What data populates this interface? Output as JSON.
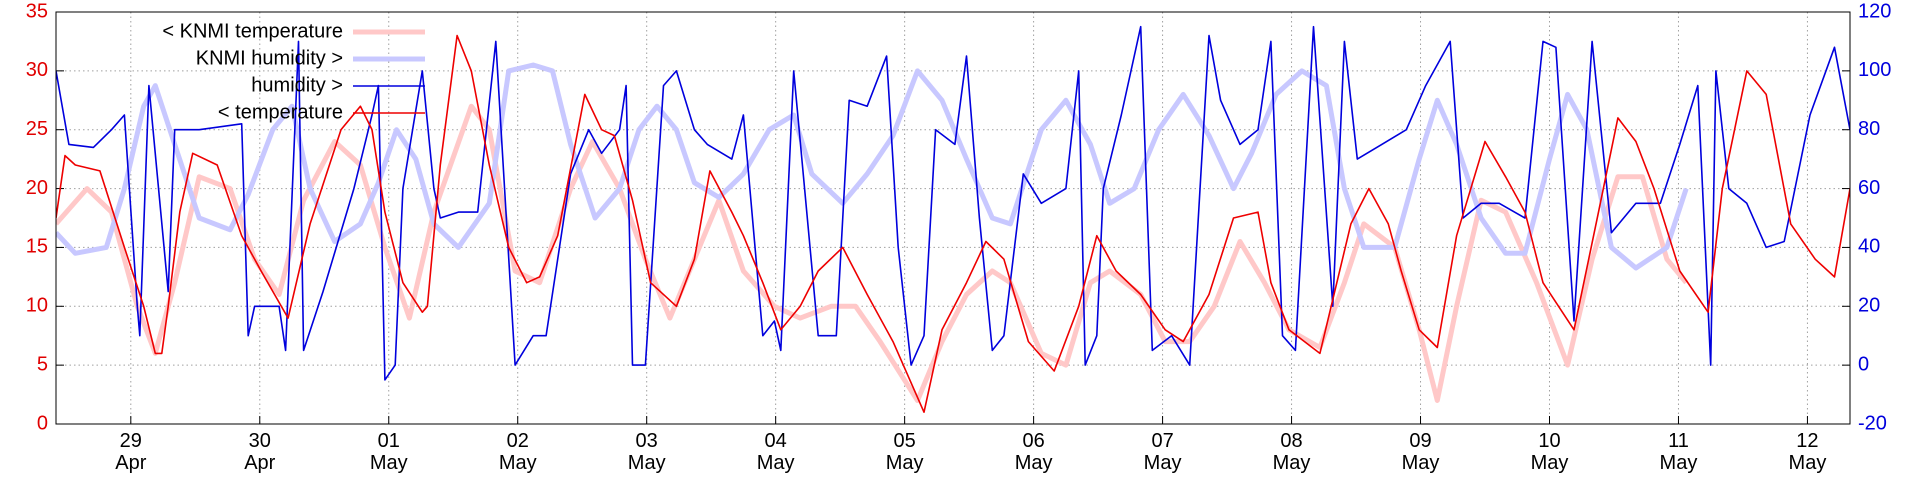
{
  "chart_data": {
    "type": "line",
    "legend": "upper left",
    "grid": true,
    "xlim": [
      0.42,
      14.33
    ],
    "xticks": [
      {
        "value": 1,
        "label": "29\nApr"
      },
      {
        "value": 2,
        "label": "30\nApr"
      },
      {
        "value": 3,
        "label": "01\nMay"
      },
      {
        "value": 4,
        "label": "02\nMay"
      },
      {
        "value": 5,
        "label": "03\nMay"
      },
      {
        "value": 6,
        "label": "04\nMay"
      },
      {
        "value": 7,
        "label": "05\nMay"
      },
      {
        "value": 8,
        "label": "06\nMay"
      },
      {
        "value": 9,
        "label": "07\nMay"
      },
      {
        "value": 10,
        "label": "08\nMay"
      },
      {
        "value": 11,
        "label": "09\nMay"
      },
      {
        "value": 12,
        "label": "10\nMay"
      },
      {
        "value": 13,
        "label": "11\nMay"
      },
      {
        "value": 14,
        "label": "12\nMay"
      }
    ],
    "ylim": [
      0,
      35
    ],
    "yticks": [
      0,
      5,
      10,
      15,
      20,
      25,
      30,
      35
    ],
    "y2lim": [
      -20,
      120
    ],
    "y2ticks": [
      -20,
      0,
      20,
      40,
      60,
      80,
      100,
      120
    ],
    "y_color": "#e00000",
    "y2_color": "#0000dd",
    "series": [
      {
        "name": "< KNMI temperature",
        "color": "#ffc8c8",
        "width": 5,
        "x": [
          0.42,
          0.66,
          0.85,
          1.05,
          1.19,
          1.34,
          1.53,
          1.77,
          1.96,
          2.15,
          2.34,
          2.58,
          2.78,
          2.97,
          3.16,
          3.35,
          3.64,
          3.78,
          3.98,
          4.17,
          4.41,
          4.58,
          4.79,
          4.99,
          5.18,
          5.37,
          5.56,
          5.75,
          5.99,
          6.19,
          6.43,
          6.62,
          6.81,
          7.1,
          7.29,
          7.48,
          7.68,
          7.82,
          8.06,
          8.25,
          8.44,
          8.59,
          8.83,
          9.02,
          9.21,
          9.4,
          9.6,
          9.79,
          9.98,
          10.22,
          10.41,
          10.56,
          10.8,
          10.99,
          11.13,
          11.28,
          11.47,
          11.66,
          11.9,
          12.14,
          12.33,
          12.53,
          12.72,
          12.91,
          13.06
        ],
        "values": [
          17,
          20,
          18,
          10,
          6,
          12,
          21,
          20,
          14,
          11,
          19,
          24,
          22,
          15,
          9,
          18,
          27,
          25,
          13,
          12,
          20,
          24,
          20,
          14,
          9,
          14,
          19,
          13,
          10,
          9,
          10,
          10,
          7,
          2,
          7,
          11,
          13,
          12,
          6,
          5,
          12,
          13,
          11,
          7,
          7,
          10,
          15.5,
          12,
          8,
          6.5,
          12,
          17,
          15,
          8,
          2,
          10,
          19,
          18,
          12,
          5,
          14,
          21,
          21,
          14,
          12
        ]
      },
      {
        "name": "KNMI humidity >",
        "color": "#c8c8ff",
        "width": 5,
        "axis": "y2",
        "x": [
          0.42,
          0.57,
          0.81,
          0.95,
          1.1,
          1.19,
          1.34,
          1.53,
          1.77,
          1.91,
          2.1,
          2.25,
          2.39,
          2.58,
          2.78,
          2.92,
          3.06,
          3.21,
          3.35,
          3.54,
          3.78,
          3.93,
          4.12,
          4.27,
          4.41,
          4.6,
          4.79,
          4.94,
          5.08,
          5.23,
          5.37,
          5.56,
          5.75,
          5.95,
          6.14,
          6.28,
          6.52,
          6.71,
          6.91,
          7.1,
          7.29,
          7.48,
          7.68,
          7.82,
          8.06,
          8.25,
          8.44,
          8.59,
          8.78,
          8.97,
          9.16,
          9.36,
          9.55,
          9.69,
          9.88,
          10.08,
          10.27,
          10.41,
          10.56,
          10.8,
          10.99,
          11.13,
          11.28,
          11.47,
          11.66,
          11.81,
          12.0,
          12.14,
          12.29,
          12.48,
          12.67,
          12.91,
          13.06
        ],
        "values": [
          45,
          38,
          40,
          60,
          88,
          95,
          75,
          50,
          46,
          58,
          80,
          88,
          60,
          42,
          48,
          62,
          80,
          70,
          48,
          40,
          55,
          100,
          102,
          100,
          75,
          50,
          60,
          80,
          88,
          80,
          62,
          57,
          65,
          80,
          85,
          65,
          55,
          65,
          78,
          100,
          90,
          70,
          50,
          48,
          80,
          90,
          75,
          55,
          60,
          80,
          92,
          78,
          60,
          72,
          92,
          100,
          95,
          60,
          40,
          40,
          70,
          90,
          75,
          50,
          38,
          38,
          70,
          92,
          80,
          40,
          33,
          40,
          60
        ]
      },
      {
        "name": "humidity >",
        "color": "#0000dd",
        "width": 1.6,
        "axis": "y2",
        "x": [
          0.42,
          0.52,
          0.71,
          0.85,
          0.95,
          1.05,
          1.07,
          1.14,
          1.29,
          1.34,
          1.53,
          1.86,
          1.91,
          1.96,
          2.06,
          2.15,
          2.2,
          2.3,
          2.34,
          2.49,
          2.73,
          2.87,
          2.92,
          2.97,
          3.05,
          3.11,
          3.26,
          3.35,
          3.4,
          3.54,
          3.69,
          3.83,
          3.98,
          4.12,
          4.22,
          4.41,
          4.55,
          4.65,
          4.79,
          4.84,
          4.89,
          4.99,
          5.13,
          5.23,
          5.37,
          5.47,
          5.66,
          5.75,
          5.9,
          5.99,
          6.04,
          6.14,
          6.33,
          6.47,
          6.57,
          6.71,
          6.86,
          6.95,
          7.05,
          7.15,
          7.24,
          7.39,
          7.48,
          7.58,
          7.68,
          7.77,
          7.92,
          8.06,
          8.25,
          8.35,
          8.4,
          8.49,
          8.54,
          8.68,
          8.83,
          8.92,
          9.07,
          9.21,
          9.36,
          9.45,
          9.6,
          9.74,
          9.84,
          9.93,
          10.03,
          10.17,
          10.32,
          10.41,
          10.51,
          10.7,
          10.89,
          11.04,
          11.23,
          11.33,
          11.47,
          11.61,
          11.81,
          11.95,
          12.05,
          12.19,
          12.33,
          12.48,
          12.67,
          12.86,
          13.01,
          13.15,
          13.25,
          13.29,
          13.39,
          13.53,
          13.68,
          13.82,
          14.02,
          14.21,
          14.33
        ],
        "values": [
          100,
          75,
          74,
          80,
          85,
          20,
          10,
          95,
          25,
          80,
          80,
          82,
          10,
          20,
          20,
          20,
          5,
          110,
          5,
          25,
          60,
          85,
          95,
          -5,
          0,
          60,
          100,
          60,
          50,
          52,
          52,
          110,
          0,
          10,
          10,
          65,
          80,
          72,
          80,
          95,
          0,
          0,
          95,
          100,
          80,
          75,
          70,
          85,
          10,
          15,
          5,
          100,
          10,
          10,
          90,
          88,
          105,
          40,
          0,
          10,
          80,
          75,
          105,
          50,
          5,
          10,
          65,
          55,
          60,
          100,
          0,
          10,
          60,
          85,
          115,
          5,
          10,
          0,
          112,
          90,
          75,
          80,
          110,
          10,
          5,
          115,
          20,
          110,
          70,
          75,
          80,
          95,
          110,
          50,
          55,
          55,
          50,
          110,
          108,
          15,
          110,
          45,
          55,
          55,
          75,
          95,
          0,
          100,
          60,
          55,
          40,
          42,
          85,
          108,
          80
        ]
      },
      {
        "name": "< temperature",
        "color": "#ee0000",
        "width": 1.6,
        "x": [
          0.42,
          0.49,
          0.57,
          0.76,
          0.95,
          1.1,
          1.19,
          1.24,
          1.29,
          1.38,
          1.48,
          1.67,
          1.86,
          2.01,
          2.22,
          2.39,
          2.63,
          2.78,
          2.87,
          2.97,
          3.11,
          3.26,
          3.3,
          3.4,
          3.53,
          3.64,
          3.78,
          3.93,
          4.07,
          4.17,
          4.31,
          4.52,
          4.65,
          4.75,
          4.89,
          5.03,
          5.23,
          5.37,
          5.49,
          5.66,
          5.75,
          5.9,
          6.04,
          6.19,
          6.33,
          6.52,
          6.71,
          6.91,
          7.15,
          7.29,
          7.48,
          7.63,
          7.77,
          7.96,
          8.16,
          8.35,
          8.49,
          8.64,
          8.83,
          9.02,
          9.16,
          9.36,
          9.55,
          9.74,
          9.84,
          9.98,
          10.22,
          10.46,
          10.6,
          10.75,
          10.85,
          10.99,
          11.13,
          11.28,
          11.5,
          11.66,
          11.81,
          11.95,
          12.19,
          12.38,
          12.53,
          12.67,
          12.81,
          13.01,
          13.23,
          13.34,
          13.53,
          13.68,
          13.87,
          14.06,
          14.21,
          14.33
        ],
        "values": [
          17.5,
          22.8,
          22,
          21.5,
          15,
          10,
          6,
          6,
          10,
          18,
          23,
          22,
          16,
          13,
          9,
          17,
          25,
          27,
          25,
          18,
          12,
          9.5,
          10,
          22,
          33,
          30,
          22,
          15,
          12,
          12.5,
          16,
          28,
          25,
          24.5,
          19,
          12,
          10,
          14,
          21.5,
          18,
          16,
          12,
          8,
          10,
          13,
          15,
          11,
          7,
          1,
          8,
          12,
          15.5,
          14,
          7,
          4.5,
          10,
          16,
          13,
          11,
          8,
          7,
          11,
          17.5,
          18,
          12,
          8,
          6,
          17,
          20,
          17,
          13,
          8,
          6.5,
          16,
          24,
          21,
          18,
          12,
          8,
          18,
          26,
          24,
          20,
          13,
          9.5,
          20,
          30,
          28,
          17,
          14,
          12.5,
          20
        ]
      }
    ]
  }
}
